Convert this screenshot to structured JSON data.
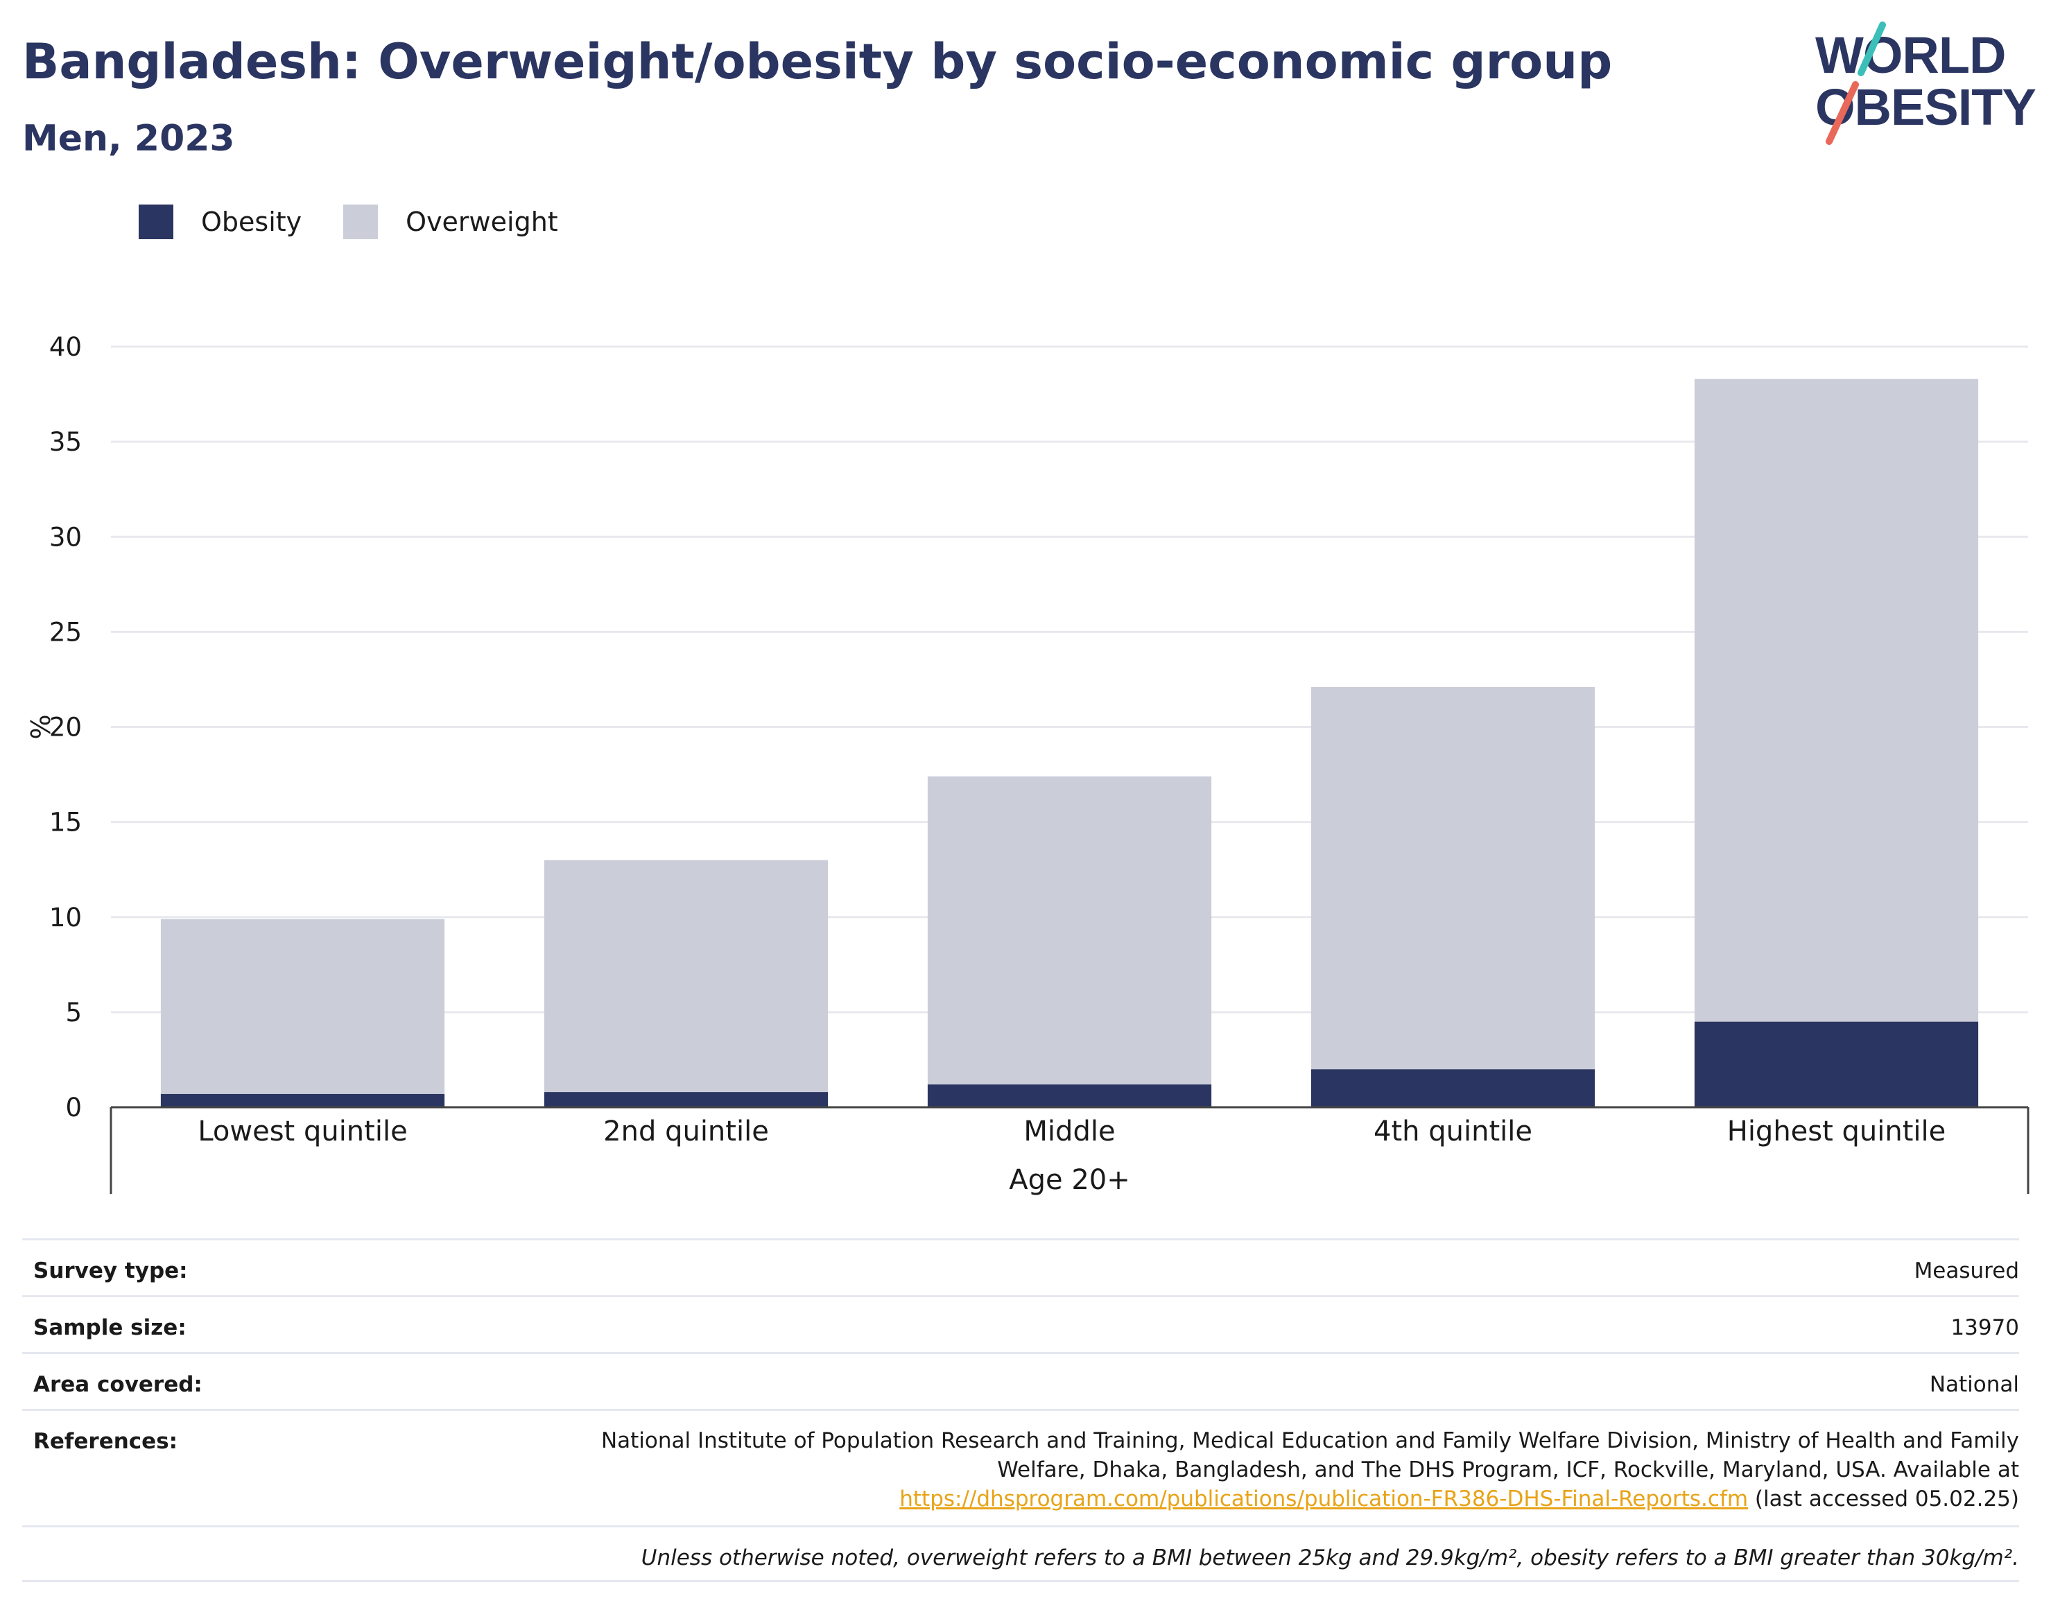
{
  "header": {
    "title": "Bangladesh: Overweight/obesity by socio-economic group",
    "subtitle": "Men, 2023",
    "logo_line1": "WORLD",
    "logo_line2": "OBESITY"
  },
  "legend": {
    "obesity": "Obesity",
    "overweight": "Overweight"
  },
  "colors": {
    "obesity": "#2b3561",
    "overweight": "#cbcdd8",
    "title": "#2b3561",
    "logo_teal": "#3bbfb8",
    "logo_red": "#e8685a",
    "link": "#e8a317"
  },
  "chart_data": {
    "type": "bar",
    "stacked": true,
    "categories": [
      "Lowest quintile",
      "2nd quintile",
      "Middle",
      "4th quintile",
      "Highest quintile"
    ],
    "series": [
      {
        "name": "Obesity",
        "values": [
          0.7,
          0.8,
          1.2,
          2.0,
          4.5
        ]
      },
      {
        "name": "Overweight",
        "values": [
          9.2,
          12.2,
          16.2,
          20.1,
          33.8
        ]
      }
    ],
    "totals": [
      9.9,
      13.0,
      17.4,
      22.1,
      38.3
    ],
    "ylabel": "%",
    "xlabel": "Age 20+",
    "ylim": [
      0,
      40
    ],
    "yticks": [
      0,
      5,
      10,
      15,
      20,
      25,
      30,
      35,
      40
    ],
    "grid": true,
    "legend_position": "top-left"
  },
  "info": {
    "survey_type_label": "Survey type:",
    "survey_type_value": "Measured",
    "sample_size_label": "Sample size:",
    "sample_size_value": "13970",
    "area_label": "Area covered:",
    "area_value": "National",
    "references_label": "References:",
    "references_text": "National Institute of Population Research and Training, Medical Education and Family Welfare Division, Ministry of Health and Family Welfare, Dhaka, Bangladesh, and The DHS Program, ICF, Rockville, Maryland, USA. Available at",
    "references_link": "https://dhsprogram.com/publications/publication-FR386-DHS-Final-Reports.cfm",
    "references_suffix": " (last accessed 05.02.25)",
    "note": "Unless otherwise noted, overweight refers to a BMI between 25kg and 29.9kg/m², obesity refers to a BMI greater than 30kg/m²."
  }
}
